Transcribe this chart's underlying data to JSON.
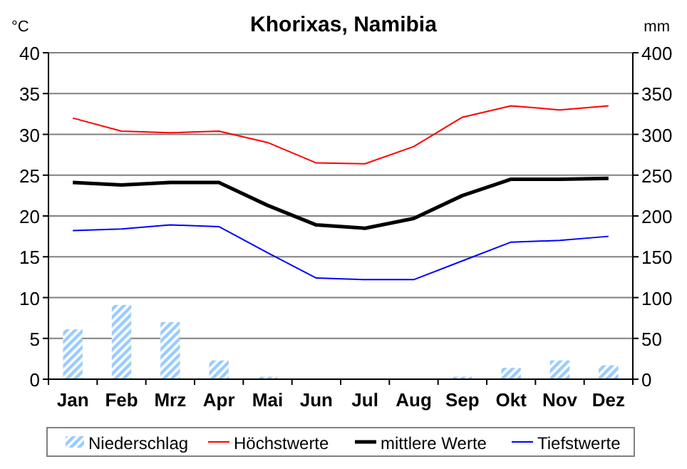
{
  "chart_data": {
    "type": "line",
    "title": "Khorixas, Namibia",
    "ylabel": "°C",
    "y2label": "mm",
    "categories": [
      "Jan",
      "Feb",
      "Mrz",
      "Apr",
      "Mai",
      "Jun",
      "Jul",
      "Aug",
      "Sep",
      "Okt",
      "Nov",
      "Dez"
    ],
    "series": [
      {
        "name": "Niederschlag",
        "type": "bar",
        "axis": "y2",
        "color": "#99ccff",
        "values": [
          61,
          91,
          70,
          23,
          3,
          0,
          0,
          0,
          3,
          14,
          23,
          17
        ]
      },
      {
        "name": "Höchstwerte",
        "color": "#ff0000",
        "values": [
          32,
          30.4,
          30.2,
          30.4,
          29,
          26.5,
          26.4,
          28.5,
          32.1,
          33.5,
          33,
          33.5
        ]
      },
      {
        "name": "mittlere Werte",
        "color": "#000000",
        "values": [
          24.1,
          23.8,
          24.1,
          24.1,
          21.3,
          18.9,
          18.5,
          19.7,
          22.5,
          24.5,
          24.5,
          24.6
        ]
      },
      {
        "name": "Tiefstwerte",
        "color": "#0000ff",
        "values": [
          18.2,
          18.4,
          18.9,
          18.7,
          15.5,
          12.4,
          12.2,
          12.2,
          14.5,
          16.8,
          17,
          17.5
        ]
      }
    ],
    "ylim": [
      0,
      40
    ],
    "yticks": [
      0,
      5,
      10,
      15,
      20,
      25,
      30,
      35,
      40
    ],
    "y2lim": [
      0,
      400
    ],
    "y2ticks": [
      0,
      50,
      100,
      150,
      200,
      250,
      300,
      350,
      400
    ],
    "grid": "y",
    "legend": "bottom",
    "marker": "none",
    "line_style": "solid"
  }
}
